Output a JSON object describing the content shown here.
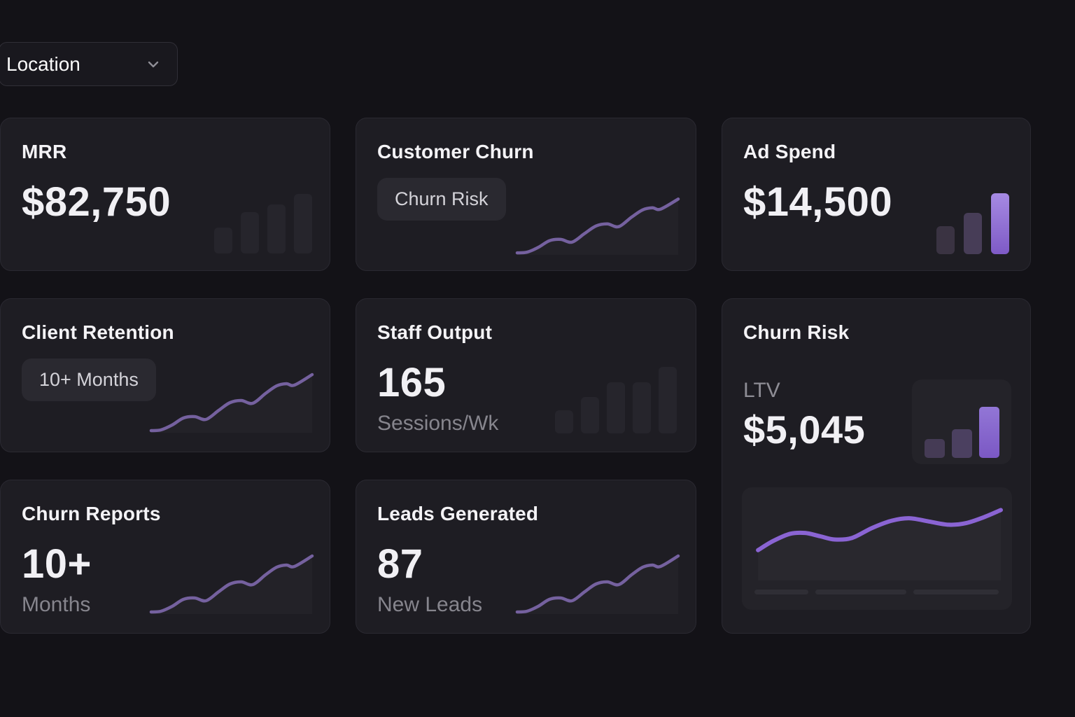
{
  "filters": {
    "location": {
      "label": "Location"
    }
  },
  "colors": {
    "page_bg": "#131217",
    "card_bg": "#1e1d23",
    "card_border": "#2a2931",
    "panel_bg": "#242329",
    "badge_bg": "#2a2930",
    "muted_bar": "#26252c",
    "sparkline_purple": "#75619f",
    "trend_purple": "#8a64d3",
    "accent_bar_purple": "#8b68cf",
    "text_primary": "#f1f0f4",
    "text_muted": "#86858d"
  },
  "cards": {
    "mrr": {
      "title": "MRR",
      "value": "$82,750",
      "bars": {
        "values": [
          37,
          59,
          70,
          85
        ]
      }
    },
    "customer_churn": {
      "title": "Customer Churn",
      "badge": "Churn Risk",
      "sparkline": {
        "color": "#75619f",
        "stroke": 4.5,
        "points": [
          [
            0,
            97
          ],
          [
            6,
            96
          ],
          [
            13,
            89
          ],
          [
            20,
            79
          ],
          [
            27,
            77
          ],
          [
            34,
            81
          ],
          [
            42,
            68
          ],
          [
            49,
            57
          ],
          [
            56,
            54
          ],
          [
            63,
            58
          ],
          [
            71,
            44
          ],
          [
            78,
            33
          ],
          [
            84,
            30
          ],
          [
            89,
            32
          ],
          [
            100,
            17
          ]
        ]
      }
    },
    "ad_spend": {
      "title": "Ad Spend",
      "value": "$14,500",
      "bars": {
        "values": [
          40,
          59,
          87
        ],
        "colors": [
          "#3a3342",
          "#473d57",
          "linear-gradient(180deg,#a68ae3,#7e5ac6)"
        ]
      }
    },
    "client_retention": {
      "title": "Client Retention",
      "badge": "10+ Months",
      "sparkline": {
        "color": "#75619f",
        "stroke": 4.5,
        "points": [
          [
            0,
            97
          ],
          [
            6,
            96
          ],
          [
            13,
            89
          ],
          [
            20,
            79
          ],
          [
            27,
            77
          ],
          [
            34,
            81
          ],
          [
            42,
            68
          ],
          [
            49,
            57
          ],
          [
            56,
            54
          ],
          [
            63,
            58
          ],
          [
            71,
            44
          ],
          [
            78,
            33
          ],
          [
            84,
            30
          ],
          [
            89,
            32
          ],
          [
            100,
            17
          ]
        ]
      }
    },
    "staff_output": {
      "title": "Staff Output",
      "value": "165",
      "unit": "Sessions/Wk",
      "bars": {
        "values": [
          33,
          52,
          73,
          73,
          95
        ]
      }
    },
    "churn_risk": {
      "title": "Churn Risk",
      "label": "LTV",
      "value": "$5,045",
      "bars": {
        "values": [
          27,
          41,
          73
        ],
        "colors": [
          "#453b55",
          "#4b4060",
          "linear-gradient(180deg,#9276d6,#7b58c4)"
        ]
      },
      "trend": {
        "color": "#8a64d3",
        "stroke": 6,
        "points": [
          [
            2,
            63
          ],
          [
            8,
            52
          ],
          [
            15,
            43
          ],
          [
            21,
            42
          ],
          [
            27,
            46
          ],
          [
            33,
            50
          ],
          [
            40,
            48
          ],
          [
            48,
            36
          ],
          [
            56,
            27
          ],
          [
            63,
            24
          ],
          [
            71,
            28
          ],
          [
            79,
            32
          ],
          [
            86,
            30
          ],
          [
            93,
            23
          ],
          [
            100,
            14
          ]
        ]
      }
    },
    "churn_reports": {
      "title": "Churn Reports",
      "value": "10+",
      "unit": "Months",
      "sparkline": {
        "color": "#75619f",
        "stroke": 4.5,
        "points": [
          [
            0,
            97
          ],
          [
            6,
            96
          ],
          [
            13,
            89
          ],
          [
            20,
            79
          ],
          [
            27,
            77
          ],
          [
            34,
            81
          ],
          [
            42,
            68
          ],
          [
            49,
            57
          ],
          [
            56,
            54
          ],
          [
            63,
            58
          ],
          [
            71,
            44
          ],
          [
            78,
            33
          ],
          [
            84,
            30
          ],
          [
            89,
            32
          ],
          [
            100,
            17
          ]
        ]
      }
    },
    "leads_generated": {
      "title": "Leads Generated",
      "value": "87",
      "unit": "New Leads",
      "sparkline": {
        "color": "#75619f",
        "stroke": 4.5,
        "points": [
          [
            0,
            97
          ],
          [
            6,
            96
          ],
          [
            13,
            89
          ],
          [
            20,
            79
          ],
          [
            27,
            77
          ],
          [
            34,
            81
          ],
          [
            42,
            68
          ],
          [
            49,
            57
          ],
          [
            56,
            54
          ],
          [
            63,
            58
          ],
          [
            71,
            44
          ],
          [
            78,
            33
          ],
          [
            84,
            30
          ],
          [
            89,
            32
          ],
          [
            100,
            17
          ]
        ]
      }
    }
  }
}
